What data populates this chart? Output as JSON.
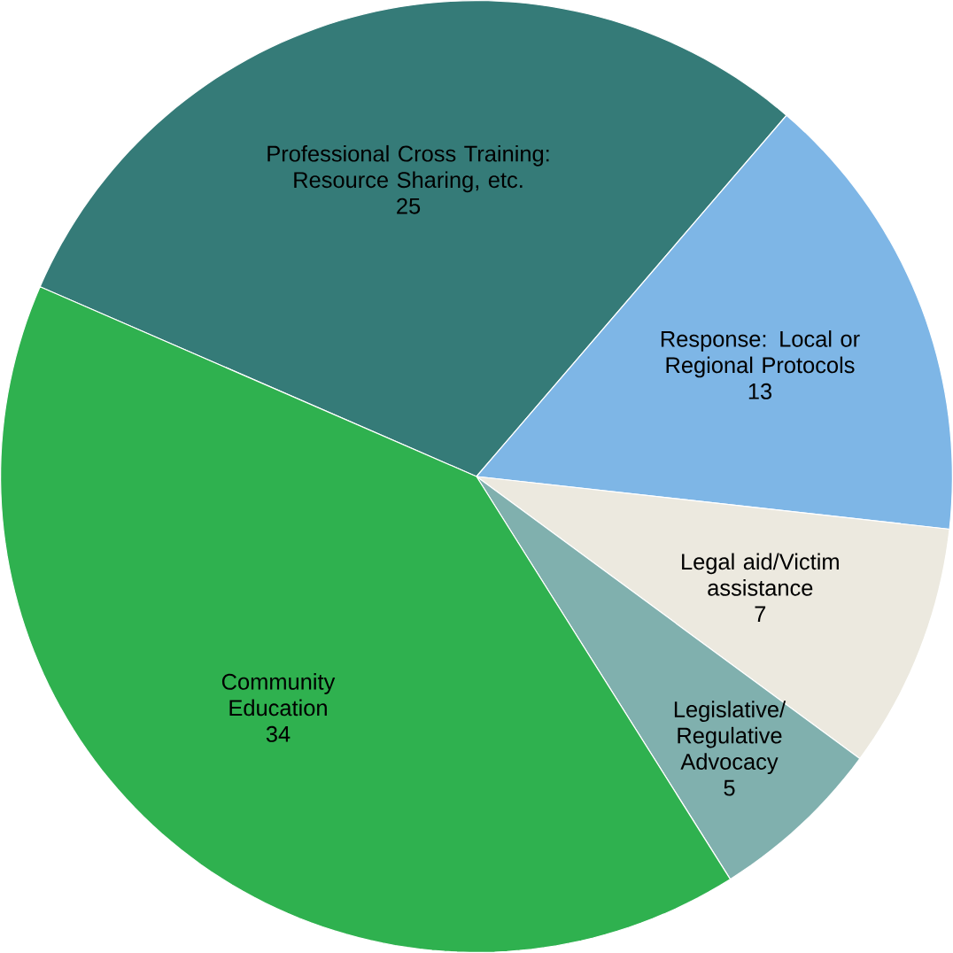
{
  "chart_data": {
    "type": "pie",
    "categories": [
      "Professional Cross Training: Resource Sharing, etc.",
      "Response: Local or Regional Protocols",
      "Legal aid/Victim assistance",
      "Legislative/ Regulative Advocacy",
      "Community Education"
    ],
    "values": [
      25,
      13,
      7,
      5,
      34
    ],
    "colors": [
      "#357b78",
      "#7eb6e6",
      "#ece9df",
      "#80b0ae",
      "#2fb14f"
    ],
    "data_labels": true
  }
}
